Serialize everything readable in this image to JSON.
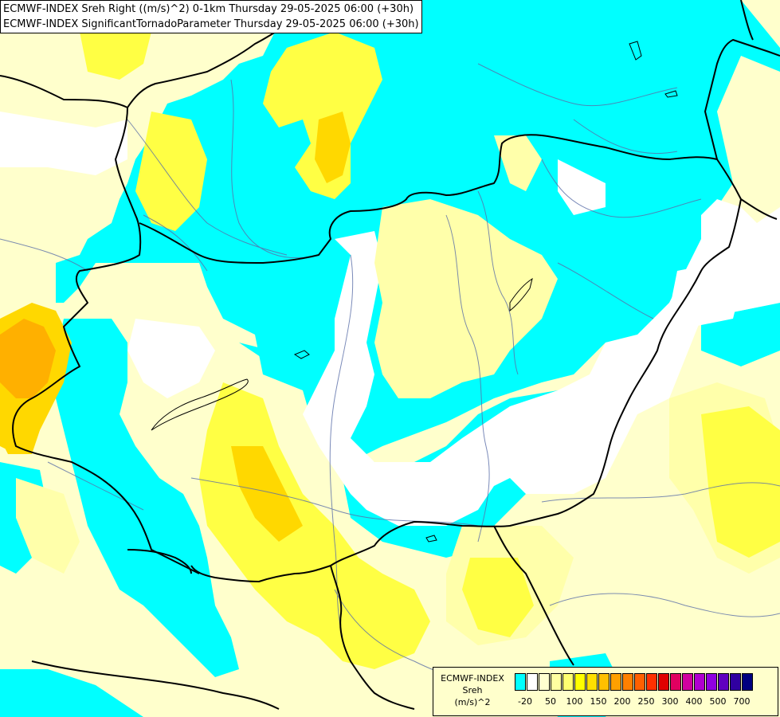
{
  "header": {
    "line1": "ECMWF-INDEX Sreh Right ((m/s)^2) 0-1km Thursday 29-05-2025 06:00 (+30h)",
    "line2": "ECMWF-INDEX SignificantTornadoParameter Thursday 29-05-2025 06:00 (+30h)"
  },
  "legend": {
    "title1": "ECMWF-INDEX",
    "title2": "Sreh",
    "title3": "(m/s)^2",
    "colors": [
      "#00ffff",
      "#ffffff",
      "#ffffd0",
      "#ffffa0",
      "#ffff70",
      "#ffff00",
      "#ffe000",
      "#ffc000",
      "#ffa000",
      "#ff8000",
      "#ff6000",
      "#ff3000",
      "#e00000",
      "#e00060",
      "#d000a0",
      "#b000d0",
      "#9000e0",
      "#6000c0",
      "#3000a0",
      "#000080"
    ],
    "ticks": [
      "-20",
      "50",
      "100",
      "150",
      "200",
      "250",
      "300",
      "400",
      "500",
      "700"
    ]
  },
  "map_colors": {
    "cyan": "#00ffff",
    "white": "#ffffff",
    "pale": "#ffffcc",
    "light_yellow": "#ffff99",
    "yellow": "#ffff00",
    "gold": "#ffd700",
    "orange": "#ffb000"
  }
}
